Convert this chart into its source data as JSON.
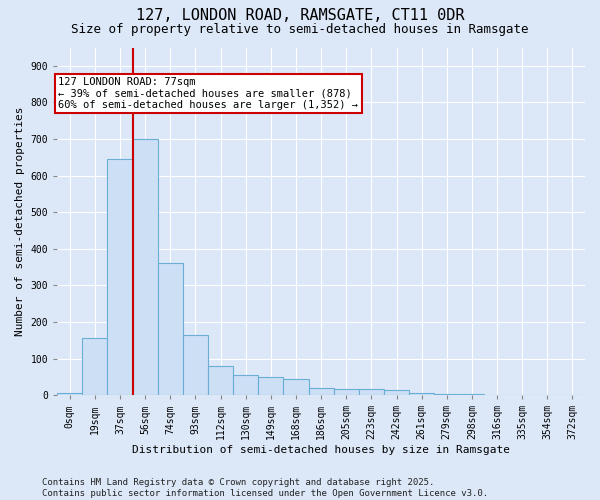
{
  "title": "127, LONDON ROAD, RAMSGATE, CT11 0DR",
  "subtitle": "Size of property relative to semi-detached houses in Ramsgate",
  "xlabel": "Distribution of semi-detached houses by size in Ramsgate",
  "ylabel": "Number of semi-detached properties",
  "categories": [
    "0sqm",
    "19sqm",
    "37sqm",
    "56sqm",
    "74sqm",
    "93sqm",
    "112sqm",
    "130sqm",
    "149sqm",
    "168sqm",
    "186sqm",
    "205sqm",
    "223sqm",
    "242sqm",
    "261sqm",
    "279sqm",
    "298sqm",
    "316sqm",
    "335sqm",
    "354sqm",
    "372sqm"
  ],
  "values": [
    5,
    155,
    645,
    700,
    360,
    165,
    80,
    55,
    50,
    45,
    20,
    18,
    17,
    15,
    5,
    3,
    2,
    0,
    0,
    0,
    0
  ],
  "bar_color": "#ccdff5",
  "bar_edge_color": "#6aaed6",
  "vline_x_idx": 2.5,
  "vline_color": "#cc0000",
  "annotation_text": "127 LONDON ROAD: 77sqm\n← 39% of semi-detached houses are smaller (878)\n60% of semi-detached houses are larger (1,352) →",
  "annotation_box_color": "#ffffff",
  "annotation_box_edge": "#cc0000",
  "ylim": [
    0,
    950
  ],
  "yticks": [
    0,
    100,
    200,
    300,
    400,
    500,
    600,
    700,
    800,
    900
  ],
  "footer": "Contains HM Land Registry data © Crown copyright and database right 2025.\nContains public sector information licensed under the Open Government Licence v3.0.",
  "background_color": "#dce8f8",
  "plot_background": "#dce8f8",
  "title_fontsize": 11,
  "subtitle_fontsize": 9,
  "axis_label_fontsize": 8,
  "tick_fontsize": 7,
  "footer_fontsize": 6.5,
  "annotation_fontsize": 7.5
}
